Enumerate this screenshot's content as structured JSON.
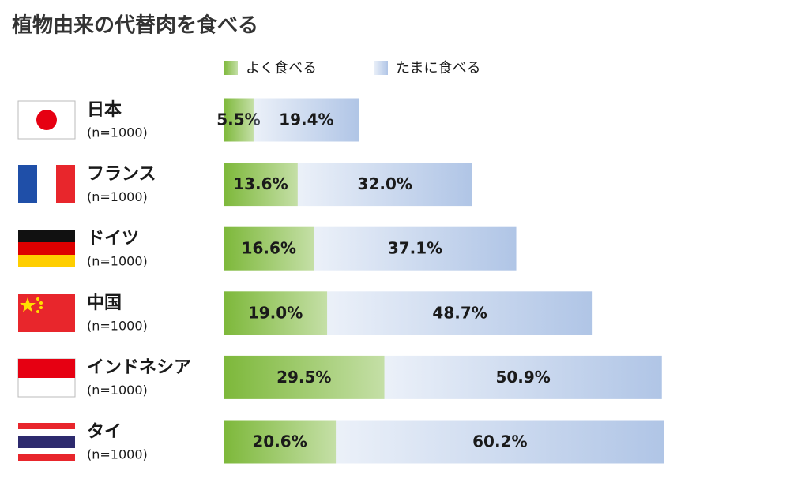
{
  "chart_data": {
    "type": "stacked-bar-horizontal",
    "title": "植物由来の代替肉を食べる",
    "categories": [
      "日本",
      "フランス",
      "ドイツ",
      "中国",
      "インドネシア",
      "タイ"
    ],
    "category_notes": [
      "(n=1000)",
      "(n=1000)",
      "(n=1000)",
      "(n=1000)",
      "(n=1000)",
      "(n=1000)"
    ],
    "series": [
      {
        "name": "よく食べる",
        "color": "#7db83a",
        "values": [
          5.5,
          13.6,
          16.6,
          19.0,
          29.5,
          20.6
        ],
        "value_labels": [
          "5.5%",
          "13.6%",
          "16.6%",
          "19.0%",
          "29.5%",
          "20.6%"
        ]
      },
      {
        "name": "たまに食べる",
        "color": "#b0c5e6",
        "values": [
          19.4,
          32.0,
          37.1,
          48.7,
          50.9,
          60.2
        ],
        "value_labels": [
          "19.4%",
          "32.0%",
          "37.1%",
          "48.7%",
          "50.9%",
          "60.2%"
        ]
      }
    ]
  }
}
